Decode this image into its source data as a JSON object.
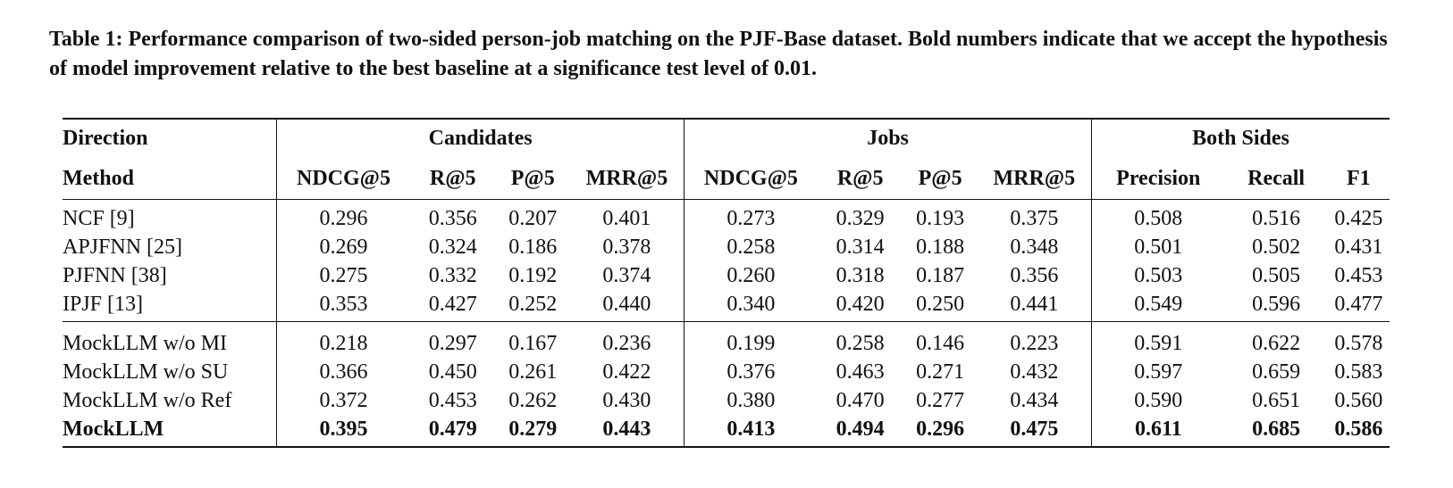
{
  "caption": "Table 1: Performance comparison of two-sided person-job matching on the PJF-Base dataset. Bold numbers indicate that we accept the hypothesis of model improvement relative to the best baseline at a significance test level of 0.01.",
  "header": {
    "direction_label": "Direction",
    "groups": [
      "Candidates",
      "Jobs",
      "Both Sides"
    ],
    "method_label": "Method",
    "metrics": [
      "NDCG@5",
      "R@5",
      "P@5",
      "MRR@5",
      "NDCG@5",
      "R@5",
      "P@5",
      "MRR@5",
      "Precision",
      "Recall",
      "F1"
    ]
  },
  "baselines": [
    {
      "method": "NCF [9]",
      "values": [
        "0.296",
        "0.356",
        "0.207",
        "0.401",
        "0.273",
        "0.329",
        "0.193",
        "0.375",
        "0.508",
        "0.516",
        "0.425"
      ]
    },
    {
      "method": "APJFNN [25]",
      "values": [
        "0.269",
        "0.324",
        "0.186",
        "0.378",
        "0.258",
        "0.314",
        "0.188",
        "0.348",
        "0.501",
        "0.502",
        "0.431"
      ]
    },
    {
      "method": "PJFNN [38]",
      "values": [
        "0.275",
        "0.332",
        "0.192",
        "0.374",
        "0.260",
        "0.318",
        "0.187",
        "0.356",
        "0.503",
        "0.505",
        "0.453"
      ]
    },
    {
      "method": "IPJF [13]",
      "values": [
        "0.353",
        "0.427",
        "0.252",
        "0.440",
        "0.340",
        "0.420",
        "0.250",
        "0.441",
        "0.549",
        "0.596",
        "0.477"
      ]
    }
  ],
  "mock": [
    {
      "method": "MockLLM w/o MI",
      "values": [
        "0.218",
        "0.297",
        "0.167",
        "0.236",
        "0.199",
        "0.258",
        "0.146",
        "0.223",
        "0.591",
        "0.622",
        "0.578"
      ]
    },
    {
      "method": "MockLLM w/o SU",
      "values": [
        "0.366",
        "0.450",
        "0.261",
        "0.422",
        "0.376",
        "0.463",
        "0.271",
        "0.432",
        "0.597",
        "0.659",
        "0.583"
      ]
    },
    {
      "method": "MockLLM w/o Ref",
      "values": [
        "0.372",
        "0.453",
        "0.262",
        "0.430",
        "0.380",
        "0.470",
        "0.277",
        "0.434",
        "0.590",
        "0.651",
        "0.560"
      ]
    },
    {
      "method": "MockLLM",
      "values": [
        "0.395",
        "0.479",
        "0.279",
        "0.443",
        "0.413",
        "0.494",
        "0.296",
        "0.475",
        "0.611",
        "0.685",
        "0.586"
      ]
    }
  ]
}
